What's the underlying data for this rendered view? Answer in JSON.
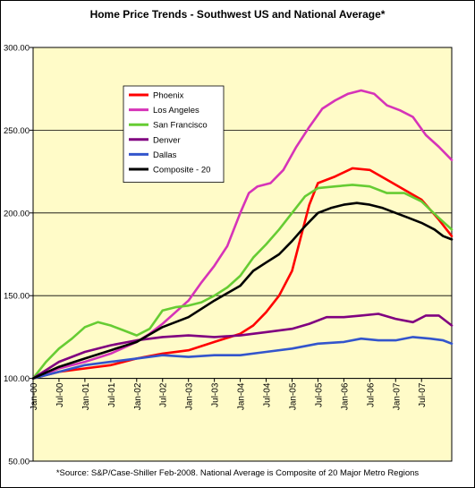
{
  "chart_data": {
    "type": "line",
    "title": "Home Price Trends - Southwest US and National Average*",
    "footnote": "*Source: S&P/Case-Shiller Feb-2008. National Average is Composite of 20 Major Metro Regions",
    "xlabel": "",
    "ylabel": "",
    "ylim": [
      50,
      300
    ],
    "yticks": [
      "50.00",
      "100.00",
      "150.00",
      "200.00",
      "250.00",
      "300.00"
    ],
    "xticks": [
      "Jan-00",
      "Jul-00",
      "Jan-01",
      "Jul-01",
      "Jan-02",
      "Jul-02",
      "Jan-03",
      "Jul-03",
      "Jan-04",
      "Jul-04",
      "Jan-05",
      "Jul-05",
      "Jan-06",
      "Jul-06",
      "Jan-07",
      "Jul-07"
    ],
    "x_range_months": [
      0,
      97
    ],
    "grid": "horizontal",
    "legend": "upper-left",
    "plot_background": "#fffbc8",
    "series": [
      {
        "name": "Phoenix",
        "color": "#ff0000",
        "points": [
          [
            0,
            100
          ],
          [
            6,
            104
          ],
          [
            12,
            106
          ],
          [
            18,
            108
          ],
          [
            24,
            112
          ],
          [
            30,
            115
          ],
          [
            36,
            117
          ],
          [
            42,
            122
          ],
          [
            48,
            127
          ],
          [
            51,
            132
          ],
          [
            54,
            140
          ],
          [
            57,
            150
          ],
          [
            60,
            165
          ],
          [
            62,
            185
          ],
          [
            64,
            205
          ],
          [
            66,
            218
          ],
          [
            70,
            222
          ],
          [
            74,
            227
          ],
          [
            78,
            226
          ],
          [
            82,
            220
          ],
          [
            86,
            214
          ],
          [
            90,
            208
          ],
          [
            94,
            196
          ],
          [
            97,
            186
          ]
        ]
      },
      {
        "name": "Los Angeles",
        "color": "#d633b8",
        "points": [
          [
            0,
            100
          ],
          [
            6,
            106
          ],
          [
            12,
            110
          ],
          [
            18,
            115
          ],
          [
            24,
            122
          ],
          [
            27,
            127
          ],
          [
            30,
            133
          ],
          [
            33,
            140
          ],
          [
            36,
            147
          ],
          [
            39,
            158
          ],
          [
            42,
            168
          ],
          [
            45,
            180
          ],
          [
            48,
            200
          ],
          [
            50,
            212
          ],
          [
            52,
            216
          ],
          [
            55,
            218
          ],
          [
            58,
            226
          ],
          [
            61,
            240
          ],
          [
            64,
            252
          ],
          [
            67,
            263
          ],
          [
            70,
            268
          ],
          [
            73,
            272
          ],
          [
            76,
            274
          ],
          [
            79,
            272
          ],
          [
            82,
            265
          ],
          [
            85,
            262
          ],
          [
            88,
            258
          ],
          [
            91,
            247
          ],
          [
            94,
            240
          ],
          [
            97,
            232
          ]
        ]
      },
      {
        "name": "San Francisco",
        "color": "#66cc33",
        "points": [
          [
            0,
            100
          ],
          [
            3,
            110
          ],
          [
            6,
            118
          ],
          [
            9,
            124
          ],
          [
            12,
            131
          ],
          [
            15,
            134
          ],
          [
            18,
            132
          ],
          [
            21,
            129
          ],
          [
            24,
            126
          ],
          [
            27,
            130
          ],
          [
            30,
            141
          ],
          [
            33,
            143
          ],
          [
            36,
            144
          ],
          [
            39,
            146
          ],
          [
            42,
            150
          ],
          [
            45,
            155
          ],
          [
            48,
            162
          ],
          [
            51,
            173
          ],
          [
            54,
            181
          ],
          [
            57,
            190
          ],
          [
            60,
            200
          ],
          [
            63,
            210
          ],
          [
            66,
            215
          ],
          [
            70,
            216
          ],
          [
            74,
            217
          ],
          [
            78,
            216
          ],
          [
            82,
            212
          ],
          [
            86,
            212
          ],
          [
            90,
            207
          ],
          [
            94,
            197
          ],
          [
            97,
            190
          ]
        ]
      },
      {
        "name": "Denver",
        "color": "#800080",
        "points": [
          [
            0,
            100
          ],
          [
            6,
            110
          ],
          [
            12,
            116
          ],
          [
            18,
            120
          ],
          [
            24,
            123
          ],
          [
            30,
            125
          ],
          [
            36,
            126
          ],
          [
            42,
            125
          ],
          [
            48,
            126
          ],
          [
            54,
            128
          ],
          [
            60,
            130
          ],
          [
            64,
            133
          ],
          [
            68,
            137
          ],
          [
            72,
            137
          ],
          [
            76,
            138
          ],
          [
            80,
            139
          ],
          [
            84,
            136
          ],
          [
            88,
            134
          ],
          [
            91,
            138
          ],
          [
            94,
            138
          ],
          [
            97,
            132
          ]
        ]
      },
      {
        "name": "Dallas",
        "color": "#3355cc",
        "points": [
          [
            0,
            100
          ],
          [
            6,
            104
          ],
          [
            12,
            108
          ],
          [
            18,
            110
          ],
          [
            24,
            112
          ],
          [
            30,
            114
          ],
          [
            36,
            113
          ],
          [
            42,
            114
          ],
          [
            48,
            114
          ],
          [
            54,
            116
          ],
          [
            60,
            118
          ],
          [
            66,
            121
          ],
          [
            72,
            122
          ],
          [
            76,
            124
          ],
          [
            80,
            123
          ],
          [
            84,
            123
          ],
          [
            88,
            125
          ],
          [
            92,
            124
          ],
          [
            95,
            123
          ],
          [
            97,
            121
          ]
        ]
      },
      {
        "name": "Composite - 20",
        "color": "#000000",
        "points": [
          [
            0,
            100
          ],
          [
            6,
            107
          ],
          [
            12,
            112
          ],
          [
            18,
            117
          ],
          [
            24,
            122
          ],
          [
            30,
            131
          ],
          [
            36,
            137
          ],
          [
            42,
            147
          ],
          [
            48,
            156
          ],
          [
            51,
            165
          ],
          [
            54,
            170
          ],
          [
            57,
            175
          ],
          [
            60,
            183
          ],
          [
            63,
            192
          ],
          [
            66,
            200
          ],
          [
            69,
            203
          ],
          [
            72,
            205
          ],
          [
            75,
            206
          ],
          [
            78,
            205
          ],
          [
            81,
            203
          ],
          [
            84,
            200
          ],
          [
            87,
            197
          ],
          [
            90,
            194
          ],
          [
            93,
            190
          ],
          [
            95,
            186
          ],
          [
            97,
            184
          ]
        ]
      }
    ]
  }
}
